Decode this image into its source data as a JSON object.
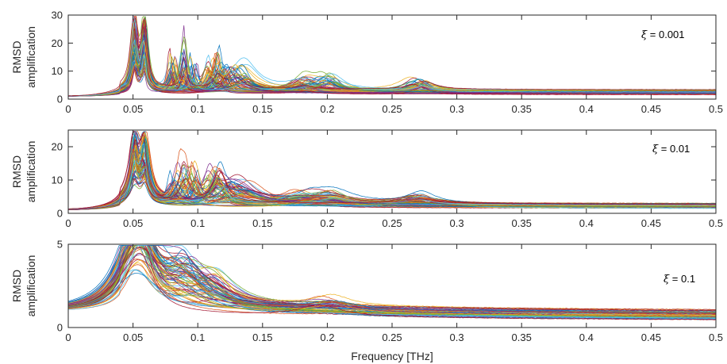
{
  "chart_data": [
    {
      "type": "line",
      "panel": 1,
      "ylabel_lines": [
        "RMSD",
        "amplification"
      ],
      "xlabel": "",
      "xlim": [
        0,
        0.5
      ],
      "ylim": [
        0,
        30
      ],
      "xticks": [
        0,
        0.05,
        0.1,
        0.15,
        0.2,
        0.25,
        0.3,
        0.35,
        0.4,
        0.45,
        0.5
      ],
      "xtick_labels": [
        "0",
        "0.05",
        "0.1",
        "0.15",
        "0.2",
        "0.25",
        "0.3",
        "0.35",
        "0.4",
        "0.45",
        "0.5"
      ],
      "yticks": [
        0,
        10,
        20,
        30
      ],
      "ytick_labels": [
        "0",
        "10",
        "20",
        "30"
      ],
      "annotation_symbol": "ξ",
      "annotation_value": " = 0.001",
      "grid": false,
      "legend": "none",
      "series_count_approx": 150,
      "peaks": [
        {
          "x": 0.051,
          "y_max": 29
        },
        {
          "x": 0.059,
          "y_max": 27
        },
        {
          "x": 0.084,
          "y_max": 19
        },
        {
          "x": 0.094,
          "y_max": 19
        },
        {
          "x": 0.112,
          "y_max": 18
        },
        {
          "x": 0.121,
          "y_max": 12
        },
        {
          "x": 0.134,
          "y_max": 13
        },
        {
          "x": 0.18,
          "y_max": 7
        },
        {
          "x": 0.2,
          "y_max": 8
        },
        {
          "x": 0.27,
          "y_max": 7
        }
      ],
      "baseline_start": 1,
      "tail_level_at_0_5": [
        1.5,
        3.5
      ]
    },
    {
      "type": "line",
      "panel": 2,
      "ylabel_lines": [
        "RMSD",
        "amplification"
      ],
      "xlabel": "",
      "xlim": [
        0,
        0.5
      ],
      "ylim": [
        0,
        25
      ],
      "xticks": [
        0,
        0.05,
        0.1,
        0.15,
        0.2,
        0.25,
        0.3,
        0.35,
        0.4,
        0.45,
        0.5
      ],
      "xtick_labels": [
        "0",
        "0.05",
        "0.1",
        "0.15",
        "0.2",
        "0.25",
        "0.3",
        "0.35",
        "0.4",
        "0.45",
        "0.5"
      ],
      "yticks": [
        0,
        10,
        20
      ],
      "ytick_labels": [
        "0",
        "10",
        "20"
      ],
      "annotation_symbol": "ξ",
      "annotation_value": " = 0.01",
      "grid": false,
      "legend": "none",
      "series_count_approx": 150,
      "peaks": [
        {
          "x": 0.051,
          "y_max": 22
        },
        {
          "x": 0.059,
          "y_max": 20.5
        },
        {
          "x": 0.084,
          "y_max": 14.5
        },
        {
          "x": 0.094,
          "y_max": 15
        },
        {
          "x": 0.112,
          "y_max": 14
        },
        {
          "x": 0.121,
          "y_max": 9
        },
        {
          "x": 0.134,
          "y_max": 10
        },
        {
          "x": 0.18,
          "y_max": 5
        },
        {
          "x": 0.2,
          "y_max": 6
        },
        {
          "x": 0.27,
          "y_max": 5
        }
      ],
      "baseline_start": 1,
      "tail_level_at_0_5": [
        1.3,
        3
      ]
    },
    {
      "type": "line",
      "panel": 3,
      "ylabel_lines": [
        "RMSD",
        "amplification"
      ],
      "xlabel": "Frequency [THz]",
      "xlim": [
        0,
        0.5
      ],
      "ylim": [
        0,
        5
      ],
      "xticks": [
        0,
        0.05,
        0.1,
        0.15,
        0.2,
        0.25,
        0.3,
        0.35,
        0.4,
        0.45,
        0.5
      ],
      "xtick_labels": [
        "0",
        "0.05",
        "0.1",
        "0.15",
        "0.2",
        "0.25",
        "0.3",
        "0.35",
        "0.4",
        "0.45",
        "0.5"
      ],
      "yticks": [
        0,
        5
      ],
      "ytick_labels": [
        "0",
        "5"
      ],
      "annotation_symbol": "ξ",
      "annotation_value": " = 0.1",
      "grid": false,
      "legend": "none",
      "series_count_approx": 150,
      "peaks": [
        {
          "x": 0.05,
          "y_max": 4.7
        },
        {
          "x": 0.058,
          "y_max": 4.4
        },
        {
          "x": 0.084,
          "y_max": 3.1
        },
        {
          "x": 0.094,
          "y_max": 3.3
        },
        {
          "x": 0.112,
          "y_max": 3.3
        },
        {
          "x": 0.2,
          "y_max": 1.7
        }
      ],
      "baseline_start": 1,
      "tail_level_at_0_5": [
        0.4,
        1.0
      ]
    }
  ],
  "colors": [
    "#0072BD",
    "#D95319",
    "#EDB120",
    "#7E2F8E",
    "#77AC30",
    "#4DBEEE",
    "#A2142F"
  ]
}
